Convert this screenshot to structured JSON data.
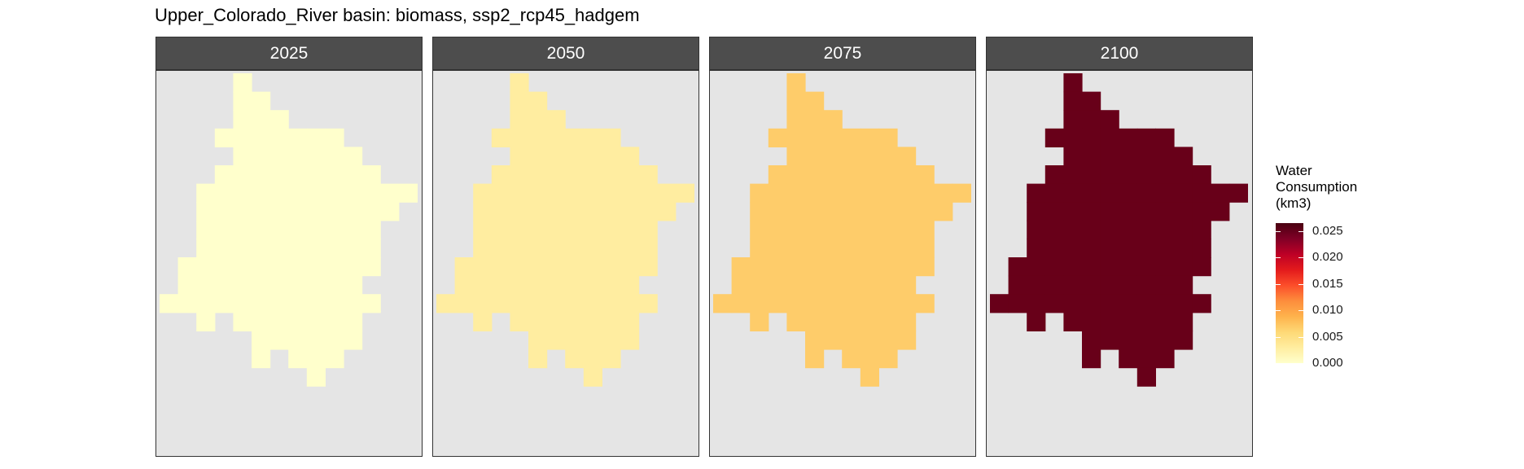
{
  "title": "Upper_Colorado_River basin: biomass, ssp2_rcp45_hadgem",
  "chart_data": {
    "type": "heatmap",
    "title": "Upper_Colorado_River basin: biomass, ssp2_rcp45_hadgem",
    "facets": [
      {
        "label": "2025",
        "value": 0.0005,
        "color": "#ffffcc"
      },
      {
        "label": "2050",
        "value": 0.003,
        "color": "#ffeda0"
      },
      {
        "label": "2075",
        "value": 0.009,
        "color": "#fecc6a"
      },
      {
        "label": "2100",
        "value": 0.025,
        "color": "#680019"
      }
    ],
    "basin_rows": [
      {
        "row": 0,
        "cells": [
          4
        ]
      },
      {
        "row": 1,
        "cells": [
          4,
          5
        ]
      },
      {
        "row": 2,
        "cells": [
          4,
          5,
          6
        ]
      },
      {
        "row": 3,
        "cells": [
          3,
          4,
          5,
          6,
          7,
          8,
          9
        ]
      },
      {
        "row": 4,
        "cells": [
          4,
          5,
          6,
          7,
          8,
          9,
          10
        ]
      },
      {
        "row": 5,
        "cells": [
          3,
          4,
          5,
          6,
          7,
          8,
          9,
          10,
          11
        ]
      },
      {
        "row": 6,
        "cells": [
          2,
          3,
          4,
          5,
          6,
          7,
          8,
          9,
          10,
          11,
          12,
          13
        ]
      },
      {
        "row": 7,
        "cells": [
          2,
          3,
          4,
          5,
          6,
          7,
          8,
          9,
          10,
          11,
          12
        ]
      },
      {
        "row": 8,
        "cells": [
          2,
          3,
          4,
          5,
          6,
          7,
          8,
          9,
          10,
          11
        ]
      },
      {
        "row": 9,
        "cells": [
          2,
          3,
          4,
          5,
          6,
          7,
          8,
          9,
          10,
          11
        ]
      },
      {
        "row": 10,
        "cells": [
          1,
          2,
          3,
          4,
          5,
          6,
          7,
          8,
          9,
          10,
          11
        ]
      },
      {
        "row": 11,
        "cells": [
          1,
          2,
          3,
          4,
          5,
          6,
          7,
          8,
          9,
          10
        ]
      },
      {
        "row": 12,
        "cells": [
          0,
          1,
          2,
          3,
          4,
          5,
          6,
          7,
          8,
          9,
          10,
          11
        ]
      },
      {
        "row": 13,
        "cells": [
          2,
          4,
          5,
          6,
          7,
          8,
          9,
          10
        ]
      },
      {
        "row": 14,
        "cells": [
          5,
          6,
          7,
          8,
          9,
          10
        ]
      },
      {
        "row": 15,
        "cells": [
          5,
          7,
          8,
          9
        ]
      },
      {
        "row": 16,
        "cells": [
          8
        ]
      }
    ],
    "legend": {
      "title": [
        "Water",
        "Consumption",
        "(km3)"
      ],
      "min": 0.0,
      "max": 0.0265,
      "ticks": [
        0.0,
        0.005,
        0.01,
        0.015,
        0.02,
        0.025
      ],
      "tick_labels": [
        "0.000",
        "0.005",
        "0.010",
        "0.015",
        "0.020",
        "0.025"
      ],
      "colors_low_to_high": [
        "#ffffcc",
        "#ffeda0",
        "#fed976",
        "#feb24c",
        "#fd8d3c",
        "#fc4e2a",
        "#e31a1c",
        "#bd0026",
        "#800026",
        "#4a0011"
      ]
    }
  }
}
